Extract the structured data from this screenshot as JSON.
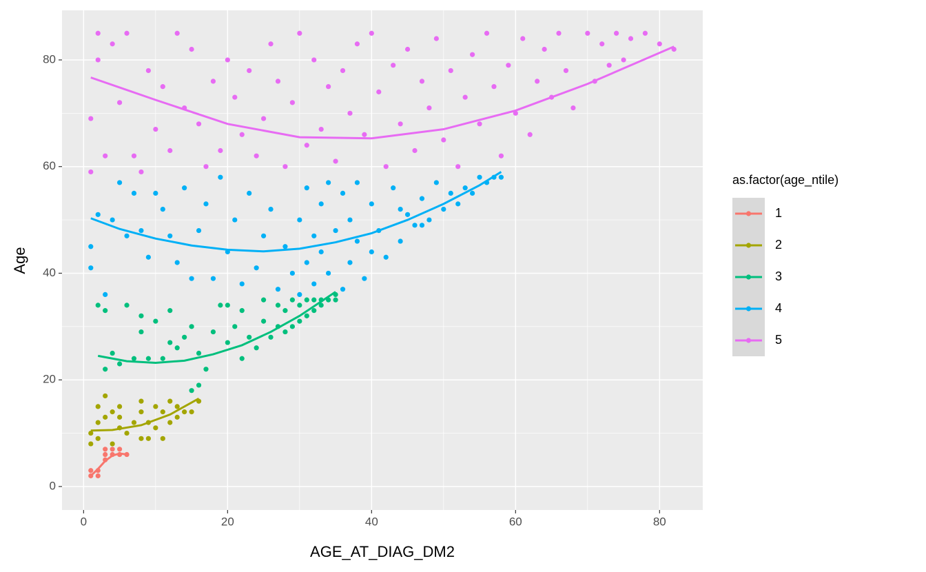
{
  "chart_data": {
    "type": "scatter",
    "x_label": "AGE_AT_DIAG_DM2",
    "y_label": "Age",
    "legend_title": "as.factor(age_ntile)",
    "legend": "right",
    "grid": true,
    "xlim": [
      -3,
      86
    ],
    "ylim": [
      -4.4,
      89.3
    ],
    "xticks": [
      0,
      20,
      40,
      60,
      80
    ],
    "yticks": [
      0,
      20,
      40,
      60,
      80
    ],
    "xminor": [
      10,
      30,
      50,
      70
    ],
    "yminor": [
      10,
      30,
      50,
      70
    ],
    "series": [
      {
        "name": "1",
        "color": "#F8766D",
        "x": [
          1,
          1,
          2,
          2,
          3,
          3,
          3,
          4,
          4,
          5,
          5,
          6
        ],
        "values": [
          2,
          3,
          2,
          3,
          5,
          6,
          7,
          6,
          7,
          6,
          7,
          6
        ],
        "smooth": {
          "x": [
            1,
            2,
            3,
            4,
            5,
            6
          ],
          "values": [
            2,
            3.3,
            4.8,
            5.8,
            6.2,
            6
          ]
        }
      },
      {
        "name": "2",
        "color": "#A3A500",
        "x": [
          1,
          1,
          2,
          2,
          2,
          3,
          3,
          4,
          4,
          5,
          5,
          5,
          6,
          7,
          8,
          8,
          8,
          9,
          9,
          10,
          10,
          11,
          11,
          12,
          12,
          13,
          13,
          14,
          15,
          16
        ],
        "values": [
          8,
          10,
          9,
          12,
          15,
          13,
          17,
          14,
          8,
          15,
          11,
          13,
          10,
          12,
          16,
          9,
          14,
          9,
          12,
          11,
          15,
          9,
          14,
          12,
          16,
          13,
          15,
          14,
          14,
          16
        ],
        "smooth": {
          "x": [
            1,
            4,
            8,
            12,
            16
          ],
          "values": [
            10.5,
            10.6,
            11.5,
            13.5,
            16.5
          ]
        }
      },
      {
        "name": "3",
        "color": "#00BF7D",
        "x": [
          2,
          3,
          3,
          4,
          5,
          6,
          7,
          8,
          8,
          9,
          10,
          11,
          12,
          12,
          13,
          14,
          15,
          15,
          16,
          16,
          17,
          18,
          19,
          20,
          20,
          21,
          22,
          22,
          23,
          24,
          25,
          25,
          26,
          27,
          27,
          28,
          28,
          29,
          29,
          30,
          30,
          31,
          31,
          32,
          32,
          33,
          33,
          34,
          35,
          35
        ],
        "values": [
          34,
          22,
          33,
          25,
          23,
          34,
          24,
          29,
          32,
          24,
          31,
          24,
          33,
          27,
          26,
          28,
          18,
          30,
          19,
          25,
          22,
          29,
          34,
          27,
          34,
          30,
          24,
          33,
          28,
          26,
          31,
          35,
          28,
          30,
          34,
          29,
          33,
          30,
          35,
          31,
          34,
          32,
          35,
          33,
          35,
          34,
          35,
          35,
          36,
          35
        ],
        "smooth": {
          "x": [
            2,
            6,
            10,
            14,
            18,
            22,
            26,
            30,
            35
          ],
          "values": [
            24.5,
            23.5,
            23.2,
            23.6,
            24.8,
            26.5,
            29,
            32,
            36.5
          ]
        }
      },
      {
        "name": "4",
        "color": "#00B0F6",
        "x": [
          1,
          1,
          2,
          3,
          4,
          5,
          6,
          7,
          8,
          9,
          10,
          11,
          12,
          13,
          14,
          15,
          16,
          17,
          18,
          19,
          20,
          21,
          22,
          23,
          24,
          25,
          26,
          27,
          28,
          29,
          30,
          30,
          31,
          31,
          32,
          32,
          33,
          33,
          34,
          34,
          35,
          36,
          36,
          37,
          37,
          38,
          39,
          40,
          40,
          41,
          42,
          43,
          44,
          45,
          46,
          47,
          48,
          49,
          50,
          51,
          52,
          53,
          54,
          55,
          56,
          57,
          58,
          38,
          44,
          47
        ],
        "values": [
          45,
          41,
          51,
          36,
          50,
          57,
          47,
          55,
          48,
          43,
          55,
          52,
          47,
          42,
          56,
          39,
          48,
          53,
          39,
          58,
          44,
          50,
          38,
          55,
          41,
          47,
          52,
          37,
          45,
          40,
          36,
          50,
          42,
          56,
          38,
          47,
          44,
          53,
          40,
          57,
          48,
          37,
          55,
          42,
          50,
          46,
          39,
          44,
          53,
          48,
          43,
          56,
          46,
          51,
          49,
          54,
          50,
          57,
          52,
          55,
          53,
          56,
          55,
          58,
          57,
          58,
          58,
          57,
          52,
          49
        ],
        "smooth": {
          "x": [
            1,
            5,
            10,
            15,
            20,
            25,
            30,
            35,
            40,
            45,
            50,
            55,
            58
          ],
          "values": [
            50.3,
            48.3,
            46.5,
            45.2,
            44.4,
            44.1,
            44.6,
            45.8,
            47.5,
            50,
            53,
            56.5,
            59
          ]
        }
      },
      {
        "name": "5",
        "color": "#E76BF3",
        "x": [
          1,
          1,
          2,
          2,
          3,
          4,
          5,
          6,
          7,
          8,
          9,
          10,
          11,
          12,
          13,
          14,
          15,
          16,
          17,
          18,
          19,
          20,
          21,
          22,
          23,
          24,
          25,
          26,
          27,
          28,
          29,
          30,
          31,
          32,
          33,
          34,
          35,
          36,
          37,
          38,
          39,
          40,
          41,
          42,
          43,
          44,
          45,
          46,
          47,
          48,
          49,
          50,
          51,
          52,
          53,
          54,
          55,
          56,
          57,
          58,
          59,
          60,
          61,
          62,
          63,
          64,
          65,
          66,
          67,
          68,
          70,
          71,
          72,
          73,
          74,
          75,
          76,
          78,
          80,
          82
        ],
        "values": [
          69,
          59,
          85,
          80,
          62,
          83,
          72,
          85,
          62,
          59,
          78,
          67,
          75,
          63,
          85,
          71,
          82,
          68,
          60,
          76,
          63,
          80,
          73,
          66,
          78,
          62,
          69,
          83,
          76,
          60,
          72,
          85,
          64,
          80,
          67,
          75,
          61,
          78,
          70,
          83,
          66,
          85,
          74,
          60,
          79,
          68,
          82,
          63,
          76,
          71,
          84,
          65,
          78,
          60,
          73,
          81,
          68,
          85,
          75,
          62,
          79,
          70,
          84,
          66,
          76,
          82,
          73,
          85,
          78,
          71,
          85,
          76,
          83,
          79,
          85,
          80,
          84,
          85,
          83,
          82
        ],
        "smooth": {
          "x": [
            1,
            10,
            20,
            30,
            40,
            50,
            60,
            70,
            82
          ],
          "values": [
            76.7,
            72.5,
            68,
            65.5,
            65.3,
            67,
            70.5,
            75.5,
            82.5
          ]
        }
      }
    ]
  }
}
